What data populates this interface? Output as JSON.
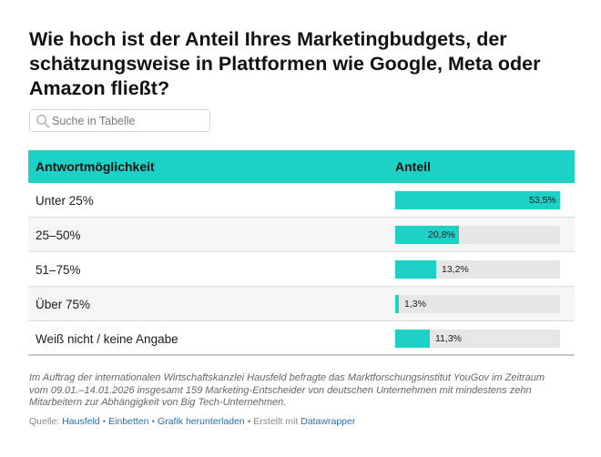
{
  "title": "Wie hoch ist der Anteil Ihres Marketingbudgets, der schätzungsweise in Plattformen wie Google, Meta oder Amazon fließt?",
  "search": {
    "placeholder": "Suche in Tabelle"
  },
  "table": {
    "headers": {
      "label": "Antwortmöglichkeit",
      "share": "Anteil"
    },
    "rows": [
      {
        "label": "Unter 25%",
        "value": 53.5,
        "display": "53,5%"
      },
      {
        "label": "25–50%",
        "value": 20.8,
        "display": "20,8%"
      },
      {
        "label": "51–75%",
        "value": 13.2,
        "display": "13,2%"
      },
      {
        "label": "Über 75%",
        "value": 1.3,
        "display": "1,3%"
      },
      {
        "label": "Weiß nicht / keine Angabe",
        "value": 11.3,
        "display": "11,3%"
      }
    ],
    "max": 53.5
  },
  "notes": "Im Auftrag der internationalen Wirtschaftskanzlei Hausfeld befragte das Marktforschungsinstitut YouGov im Zeitraum vom 09.01.–14.01.2026 insgesamt 159 Marketing-Entscheider von deutschen Unternehmen mit mindestens zehn Mitarbeitern zur Abhängigkeit von Big Tech-Unternehmen.",
  "footer": {
    "source_prefix": "Quelle: ",
    "source_link": "Hausfeld",
    "embed": "Einbetten",
    "download": "Grafik herunterladen",
    "created_prefix": "Erstellt mit ",
    "created_link": "Datawrapper",
    "separator": " • "
  },
  "colors": {
    "accent": "#1ed1c6",
    "track": "#e6e6e6",
    "link": "#2a6ea8"
  }
}
